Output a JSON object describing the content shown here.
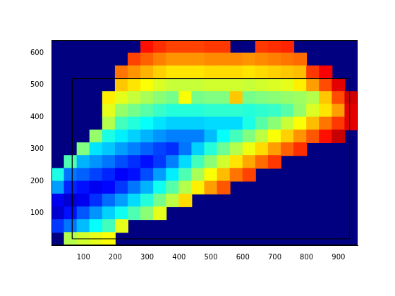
{
  "chart_data": {
    "type": "heatmap",
    "xlim": [
      0,
      960
    ],
    "ylim": [
      0,
      640
    ],
    "xticks": [
      100,
      200,
      300,
      400,
      500,
      600,
      700,
      800,
      900
    ],
    "yticks": [
      100,
      200,
      300,
      400,
      500,
      600
    ],
    "grid": false,
    "clim": [
      0,
      100
    ],
    "x_edges": [
      0,
      40,
      80,
      120,
      160,
      200,
      240,
      280,
      320,
      360,
      400,
      440,
      480,
      520,
      560,
      600,
      640,
      680,
      720,
      760,
      800,
      840,
      880,
      920,
      960
    ],
    "y_edges": [
      640,
      600,
      560,
      520,
      480,
      440,
      400,
      360,
      320,
      280,
      240,
      200,
      160,
      120,
      80,
      40,
      0
    ],
    "cells": [
      [
        null,
        null,
        null,
        null,
        null,
        null,
        null,
        86,
        83,
        81,
        81,
        81,
        82,
        82,
        null,
        null,
        82,
        83,
        84,
        null,
        null,
        null,
        null,
        null
      ],
      [
        null,
        null,
        null,
        null,
        null,
        null,
        81,
        78,
        75,
        73,
        73,
        73,
        74,
        74,
        74,
        73,
        74,
        75,
        76,
        77,
        null,
        null,
        null,
        null
      ],
      [
        null,
        null,
        null,
        null,
        null,
        76,
        73,
        70,
        67,
        65,
        65,
        65,
        66,
        66,
        66,
        65,
        66,
        67,
        68,
        69,
        82,
        88,
        null,
        null
      ],
      [
        null,
        null,
        null,
        null,
        null,
        68,
        65,
        62,
        59,
        57,
        57,
        57,
        58,
        58,
        58,
        57,
        58,
        59,
        60,
        64,
        72,
        80,
        90,
        null
      ],
      [
        null,
        null,
        null,
        null,
        64,
        60,
        57,
        54,
        51,
        49,
        62,
        49,
        50,
        50,
        68,
        49,
        50,
        51,
        52,
        53,
        55,
        68,
        80,
        92
      ],
      [
        null,
        null,
        null,
        null,
        60,
        52,
        49,
        46,
        43,
        41,
        41,
        41,
        42,
        42,
        42,
        41,
        42,
        43,
        46,
        52,
        59,
        65,
        72,
        90
      ],
      [
        null,
        null,
        null,
        null,
        55,
        44,
        41,
        38,
        35,
        33,
        33,
        33,
        34,
        34,
        34,
        40,
        46,
        51,
        57,
        62,
        69,
        76,
        82,
        90
      ],
      [
        null,
        null,
        null,
        52,
        40,
        36,
        33,
        30,
        27,
        25,
        25,
        25,
        31,
        38,
        44,
        50,
        56,
        62,
        67,
        73,
        79,
        86,
        93,
        null
      ],
      [
        null,
        null,
        50,
        35,
        32,
        28,
        25,
        22,
        19,
        17,
        24,
        33,
        41,
        48,
        55,
        61,
        66,
        72,
        78,
        83,
        null,
        null,
        null,
        null
      ],
      [
        null,
        45,
        30,
        27,
        24,
        20,
        17,
        14,
        18,
        25,
        34,
        44,
        51,
        58,
        65,
        71,
        77,
        82,
        null,
        null,
        null,
        null,
        null,
        null
      ],
      [
        40,
        24,
        22,
        19,
        16,
        12,
        14,
        20,
        28,
        36,
        45,
        54,
        62,
        69,
        76,
        81,
        null,
        null,
        null,
        null,
        null,
        null,
        null,
        null
      ],
      [
        28,
        16,
        14,
        11,
        13,
        18,
        24,
        30,
        39,
        46,
        55,
        64,
        72,
        79,
        null,
        null,
        null,
        null,
        null,
        null,
        null,
        null,
        null,
        null
      ],
      [
        11,
        8,
        11,
        17,
        23,
        28,
        34,
        41,
        49,
        56,
        66,
        null,
        null,
        null,
        null,
        null,
        null,
        null,
        null,
        null,
        null,
        null,
        null,
        null
      ],
      [
        8,
        14,
        21,
        27,
        33,
        39,
        45,
        51,
        60,
        null,
        null,
        null,
        null,
        null,
        null,
        null,
        null,
        null,
        null,
        null,
        null,
        null,
        null,
        null
      ],
      [
        18,
        24,
        31,
        38,
        44,
        60,
        null,
        null,
        null,
        null,
        null,
        null,
        null,
        null,
        null,
        null,
        null,
        null,
        null,
        null,
        null,
        null,
        null,
        null
      ],
      [
        null,
        55,
        58,
        60,
        62,
        null,
        null,
        null,
        null,
        null,
        null,
        null,
        null,
        null,
        null,
        null,
        null,
        null,
        null,
        null,
        null,
        null,
        null,
        null
      ]
    ],
    "annotations": [
      {
        "type": "rectangle",
        "x": [
          65,
          935
        ],
        "y": [
          20,
          520
        ],
        "color": "#000000"
      }
    ]
  }
}
